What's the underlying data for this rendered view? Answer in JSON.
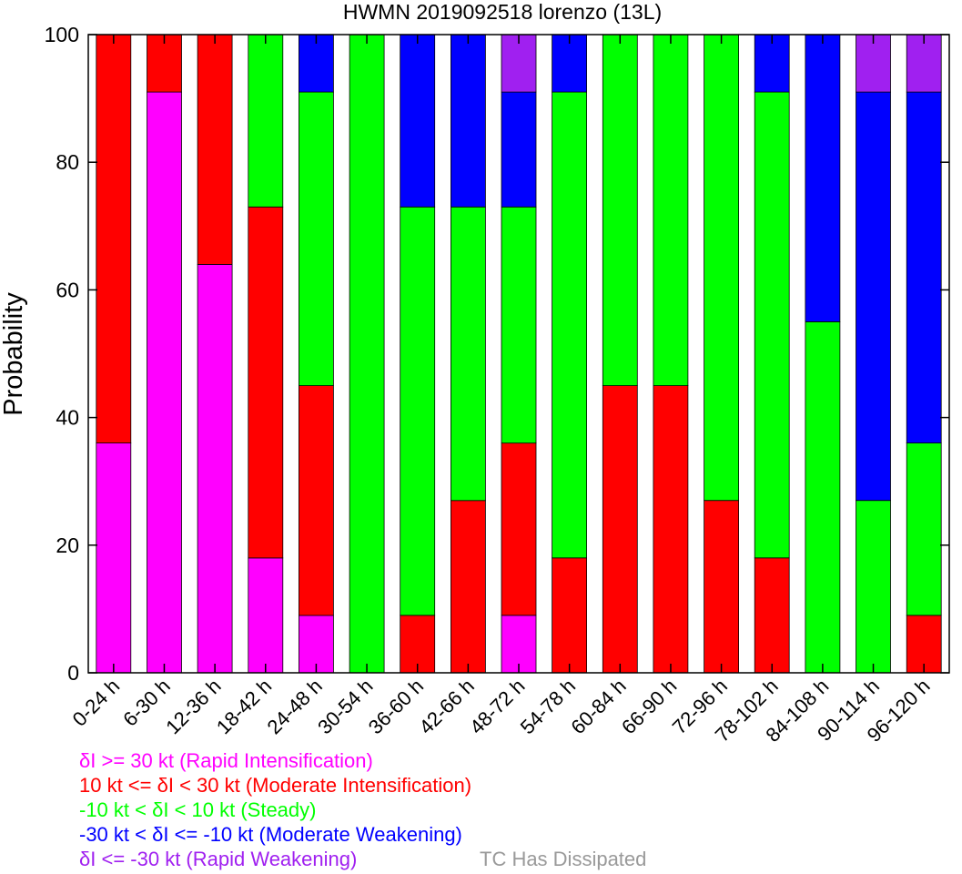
{
  "chart_data": {
    "type": "bar",
    "stacked": true,
    "title": "HWMN 2019092518 lorenzo (13L)",
    "ylabel": "Probability",
    "xlabel": "",
    "ylim": [
      0,
      100
    ],
    "yticks": [
      0,
      20,
      40,
      60,
      80,
      100
    ],
    "grid": false,
    "legend_position": "bottom-left",
    "categories": [
      "0-24 h",
      "6-30 h",
      "12-36 h",
      "18-42 h",
      "24-48 h",
      "30-54 h",
      "36-60 h",
      "42-66 h",
      "48-72 h",
      "54-78 h",
      "60-84 h",
      "66-90 h",
      "72-96 h",
      "78-102 h",
      "84-108 h",
      "90-114 h",
      "96-120 h"
    ],
    "series": [
      {
        "name": "δI >= 30 kt (Rapid Intensification)",
        "color": "#ff00ff",
        "values": [
          36,
          91,
          64,
          18,
          9,
          0,
          0,
          0,
          9,
          0,
          0,
          0,
          0,
          0,
          0,
          0,
          0
        ]
      },
      {
        "name": "10 kt <= δI < 30 kt (Moderate Intensification)",
        "color": "#ff0000",
        "values": [
          64,
          9,
          36,
          55,
          36,
          0,
          9,
          27,
          27,
          18,
          45,
          45,
          27,
          18,
          0,
          0,
          9
        ]
      },
      {
        "name": "-10 kt < δI < 10 kt (Steady)",
        "color": "#00ff00",
        "values": [
          0,
          0,
          0,
          27,
          46,
          100,
          64,
          46,
          37,
          73,
          55,
          55,
          73,
          73,
          55,
          27,
          27
        ]
      },
      {
        "name": "-30 kt < δI <= -10 kt (Moderate Weakening)",
        "color": "#0000ff",
        "values": [
          0,
          0,
          0,
          0,
          9,
          0,
          27,
          27,
          18,
          9,
          0,
          0,
          0,
          9,
          45,
          64,
          55
        ]
      },
      {
        "name": "δI <= -30 kt (Rapid Weakening)",
        "color": "#a020f0",
        "values": [
          0,
          0,
          0,
          0,
          0,
          0,
          0,
          0,
          9,
          0,
          0,
          0,
          0,
          0,
          0,
          9,
          9
        ]
      },
      {
        "name": "TC Has Dissipated",
        "color": "#999999",
        "values": [
          0,
          0,
          0,
          0,
          0,
          0,
          0,
          0,
          0,
          0,
          0,
          0,
          0,
          0,
          0,
          0,
          0
        ]
      }
    ]
  }
}
